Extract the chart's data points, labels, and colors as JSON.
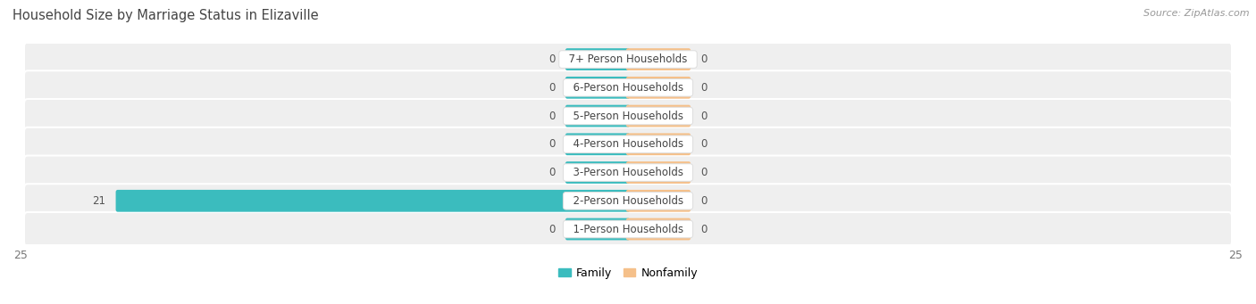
{
  "title": "Household Size by Marriage Status in Elizaville",
  "source": "Source: ZipAtlas.com",
  "categories": [
    "7+ Person Households",
    "6-Person Households",
    "5-Person Households",
    "4-Person Households",
    "3-Person Households",
    "2-Person Households",
    "1-Person Households"
  ],
  "family_values": [
    0,
    0,
    0,
    0,
    0,
    21,
    0
  ],
  "nonfamily_values": [
    0,
    0,
    0,
    0,
    0,
    0,
    0
  ],
  "family_color": "#3bbcbe",
  "nonfamily_color": "#f5c08a",
  "row_bg_color": "#efefef",
  "row_separator_color": "#ffffff",
  "xlim": 25,
  "bar_height": 0.62,
  "min_bar_width": 2.5,
  "value_label_color": "#555555",
  "title_color": "#444444",
  "source_color": "#999999",
  "legend_family": "Family",
  "legend_nonfamily": "Nonfamily",
  "tick_label_color": "#777777",
  "label_box_color": "#ffffff",
  "label_box_edge": "#dddddd",
  "label_text_color": "#444444",
  "value_fontsize": 8.5,
  "label_fontsize": 8.5,
  "title_fontsize": 10.5
}
